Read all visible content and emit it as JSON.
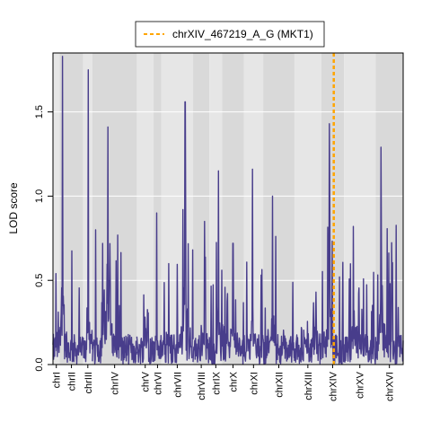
{
  "chart_data": {
    "type": "line",
    "ylabel": "LOD score",
    "ylim": [
      0,
      1.85
    ],
    "yticks": [
      "0.0",
      "0.5",
      "1.0",
      "1.5"
    ],
    "ytick_values": [
      0,
      0.5,
      1.0,
      1.5
    ],
    "grid": true,
    "legend_position": "top",
    "legend": [
      {
        "label": "chrXIV_467219_A_G (MKT1)",
        "style": "dashed",
        "color": "#FFA500"
      }
    ],
    "line_color": "#483D8B",
    "band_colors": [
      "#E6E6E6",
      "#D9D9D9"
    ],
    "marker_chromosome": "chrXIV",
    "marker_fraction": 0.55,
    "chromosomes": [
      {
        "name": "chrI",
        "length": 230,
        "peak": 0.54,
        "peak_at": 0.45
      },
      {
        "name": "chrII",
        "length": 813,
        "peak": 1.83,
        "peak_at": 0.12
      },
      {
        "name": "chrIII",
        "length": 316,
        "peak": 1.75,
        "peak_at": 0.55
      },
      {
        "name": "chrIV",
        "length": 1532,
        "peak": 1.41,
        "peak_at": 0.35
      },
      {
        "name": "chrV",
        "length": 577,
        "peak": 0.78,
        "peak_at": 0.5
      },
      {
        "name": "chrVI",
        "length": 270,
        "peak": 0.9,
        "peak_at": 0.4
      },
      {
        "name": "chrVII",
        "length": 1091,
        "peak": 1.56,
        "peak_at": 0.75
      },
      {
        "name": "chrVIII",
        "length": 563,
        "peak": 0.85,
        "peak_at": 0.7
      },
      {
        "name": "chrIX",
        "length": 440,
        "peak": 1.15,
        "peak_at": 0.7
      },
      {
        "name": "chrX",
        "length": 746,
        "peak": 0.72,
        "peak_at": 0.5
      },
      {
        "name": "chrXI",
        "length": 667,
        "peak": 1.16,
        "peak_at": 0.45
      },
      {
        "name": "chrXII",
        "length": 1078,
        "peak": 1.0,
        "peak_at": 0.3
      },
      {
        "name": "chrXIII",
        "length": 924,
        "peak": 0.43,
        "peak_at": 0.8
      },
      {
        "name": "chrXIV",
        "length": 784,
        "peak": 1.43,
        "peak_at": 0.35
      },
      {
        "name": "chrXV",
        "length": 1091,
        "peak": 0.82,
        "peak_at": 0.3
      },
      {
        "name": "chrXVI",
        "length": 948,
        "peak": 1.29,
        "peak_at": 0.2
      }
    ]
  }
}
